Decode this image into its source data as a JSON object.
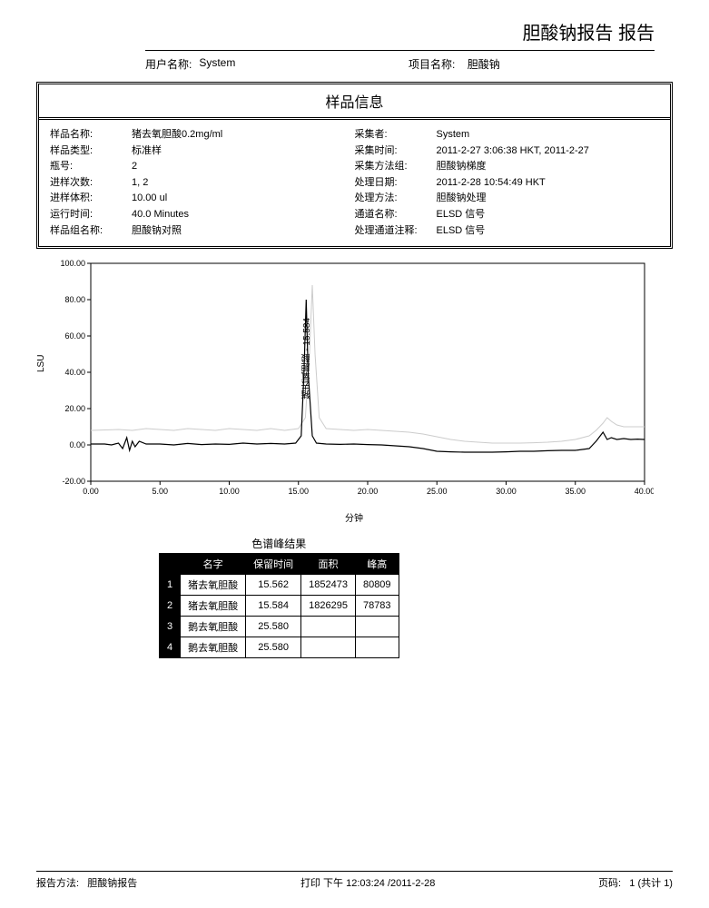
{
  "report_title": "胆酸钠报告 报告",
  "header": {
    "user_label": "用户名称:",
    "user_value": "System",
    "project_label": "项目名称:",
    "project_value": "胆酸钠"
  },
  "info_box": {
    "title": "样品信息",
    "left_rows": [
      {
        "k": "样品名称:",
        "v": "猪去氧胆酸0.2mg/ml"
      },
      {
        "k": "样品类型:",
        "v": "标准样"
      },
      {
        "k": "瓶号:",
        "v": "2"
      },
      {
        "k": "进样次数:",
        "v": "1, 2"
      },
      {
        "k": "进样体积:",
        "v": "10.00 ul"
      },
      {
        "k": "运行时间:",
        "v": "40.0 Minutes"
      },
      {
        "k": "样品组名称:",
        "v": "胆酸钠对照"
      }
    ],
    "right_rows": [
      {
        "k": "采集者:",
        "v": "System"
      },
      {
        "k": "采集时间:",
        "v": "2011-2-27 3:06:38 HKT, 2011-2-27"
      },
      {
        "k": "采集方法组:",
        "v": "胆酸钠梯度"
      },
      {
        "k": "处理日期:",
        "v": "2011-2-28 10:54:49 HKT"
      },
      {
        "k": "处理方法:",
        "v": "胆酸钠处理"
      },
      {
        "k": "通道名称:",
        "v": "ELSD 信号"
      },
      {
        "k": "处理通道注释:",
        "v": "ELSD 信号"
      }
    ]
  },
  "chart": {
    "type": "line",
    "ylabel": "LSU",
    "xlabel": "分钟",
    "ylim": [
      -20,
      100
    ],
    "ytick_step": 20,
    "yticks": [
      "-20.00",
      "0.00",
      "20.00",
      "40.00",
      "60.00",
      "80.00",
      "100.00"
    ],
    "xlim": [
      0,
      40
    ],
    "xtick_step": 5,
    "xticks": [
      "0.00",
      "5.00",
      "10.00",
      "15.00",
      "20.00",
      "25.00",
      "30.00",
      "35.00",
      "40.00"
    ],
    "background_color": "#ffffff",
    "axis_color": "#000000",
    "tick_fontsize": 9,
    "label_fontsize": 10,
    "peak_label": "猪去氧胆酸 - 15.584",
    "series": [
      {
        "name": "trace1",
        "color": "#000000",
        "line_width": 1.2,
        "points": [
          [
            0,
            0.5
          ],
          [
            1,
            0.5
          ],
          [
            1.5,
            0
          ],
          [
            2,
            1
          ],
          [
            2.3,
            -2
          ],
          [
            2.6,
            4
          ],
          [
            2.8,
            -3
          ],
          [
            3,
            2
          ],
          [
            3.2,
            -1
          ],
          [
            3.5,
            2
          ],
          [
            4,
            0.5
          ],
          [
            5,
            0.5
          ],
          [
            6,
            0
          ],
          [
            7,
            0.8
          ],
          [
            8,
            0.2
          ],
          [
            9,
            0.5
          ],
          [
            10,
            0.3
          ],
          [
            11,
            1
          ],
          [
            12,
            0.5
          ],
          [
            13,
            0.8
          ],
          [
            14,
            0.5
          ],
          [
            14.8,
            1
          ],
          [
            15.2,
            5
          ],
          [
            15.4,
            40
          ],
          [
            15.56,
            80
          ],
          [
            15.7,
            40
          ],
          [
            16,
            5
          ],
          [
            16.3,
            1
          ],
          [
            17,
            0.5
          ],
          [
            18,
            0.3
          ],
          [
            19,
            0.5
          ],
          [
            20,
            0.2
          ],
          [
            21,
            0
          ],
          [
            22,
            -0.5
          ],
          [
            23,
            -1
          ],
          [
            24,
            -2
          ],
          [
            25,
            -3.5
          ],
          [
            26,
            -3.8
          ],
          [
            27,
            -4
          ],
          [
            28,
            -4
          ],
          [
            29,
            -4
          ],
          [
            30,
            -3.8
          ],
          [
            31,
            -3.5
          ],
          [
            32,
            -3.5
          ],
          [
            33,
            -3.2
          ],
          [
            34,
            -3
          ],
          [
            35,
            -3
          ],
          [
            36,
            -2
          ],
          [
            36.5,
            2
          ],
          [
            37,
            7
          ],
          [
            37.3,
            3
          ],
          [
            37.6,
            4
          ],
          [
            38,
            3
          ],
          [
            38.5,
            3.5
          ],
          [
            39,
            3
          ],
          [
            39.5,
            3.2
          ],
          [
            40,
            3
          ]
        ]
      },
      {
        "name": "trace2",
        "color": "#cccccc",
        "line_width": 1,
        "points": [
          [
            0,
            8
          ],
          [
            2,
            8.5
          ],
          [
            3,
            8
          ],
          [
            4,
            9
          ],
          [
            5,
            8.5
          ],
          [
            6,
            8
          ],
          [
            7,
            9
          ],
          [
            8,
            8.5
          ],
          [
            9,
            8
          ],
          [
            10,
            9
          ],
          [
            11,
            8.5
          ],
          [
            12,
            8
          ],
          [
            13,
            9
          ],
          [
            14,
            8
          ],
          [
            15,
            9
          ],
          [
            15.5,
            15
          ],
          [
            15.8,
            50
          ],
          [
            16,
            88
          ],
          [
            16.2,
            50
          ],
          [
            16.5,
            15
          ],
          [
            17,
            9
          ],
          [
            18,
            8.5
          ],
          [
            19,
            8
          ],
          [
            20,
            8.5
          ],
          [
            21,
            8
          ],
          [
            22,
            7.5
          ],
          [
            23,
            7
          ],
          [
            24,
            6
          ],
          [
            25,
            4.5
          ],
          [
            26,
            3
          ],
          [
            27,
            2
          ],
          [
            28,
            1.5
          ],
          [
            29,
            1
          ],
          [
            30,
            1
          ],
          [
            31,
            1
          ],
          [
            32,
            1.2
          ],
          [
            33,
            1.5
          ],
          [
            34,
            2
          ],
          [
            35,
            3
          ],
          [
            36,
            5
          ],
          [
            36.5,
            8
          ],
          [
            37,
            12
          ],
          [
            37.3,
            15
          ],
          [
            37.6,
            13
          ],
          [
            38,
            11
          ],
          [
            38.5,
            10
          ],
          [
            39,
            10
          ],
          [
            39.5,
            10
          ],
          [
            40,
            10
          ]
        ]
      }
    ]
  },
  "results": {
    "title": "色谱峰结果",
    "columns": [
      "",
      "名字",
      "保留时间",
      "面积",
      "峰高"
    ],
    "rows": [
      [
        "1",
        "猪去氧胆酸",
        "15.562",
        "1852473",
        "80809"
      ],
      [
        "2",
        "猪去氧胆酸",
        "15.584",
        "1826295",
        "78783"
      ],
      [
        "3",
        "鹅去氧胆酸",
        "25.580",
        "",
        ""
      ],
      [
        "4",
        "鹅去氧胆酸",
        "25.580",
        "",
        ""
      ]
    ]
  },
  "footer": {
    "method_label": "报告方法:",
    "method_value": "胆酸钠报告",
    "print_label": "打印 下午",
    "print_value": "12:03:24 /2011-2-28",
    "page_label": "页码:",
    "page_value": "1 (共计 1)"
  }
}
